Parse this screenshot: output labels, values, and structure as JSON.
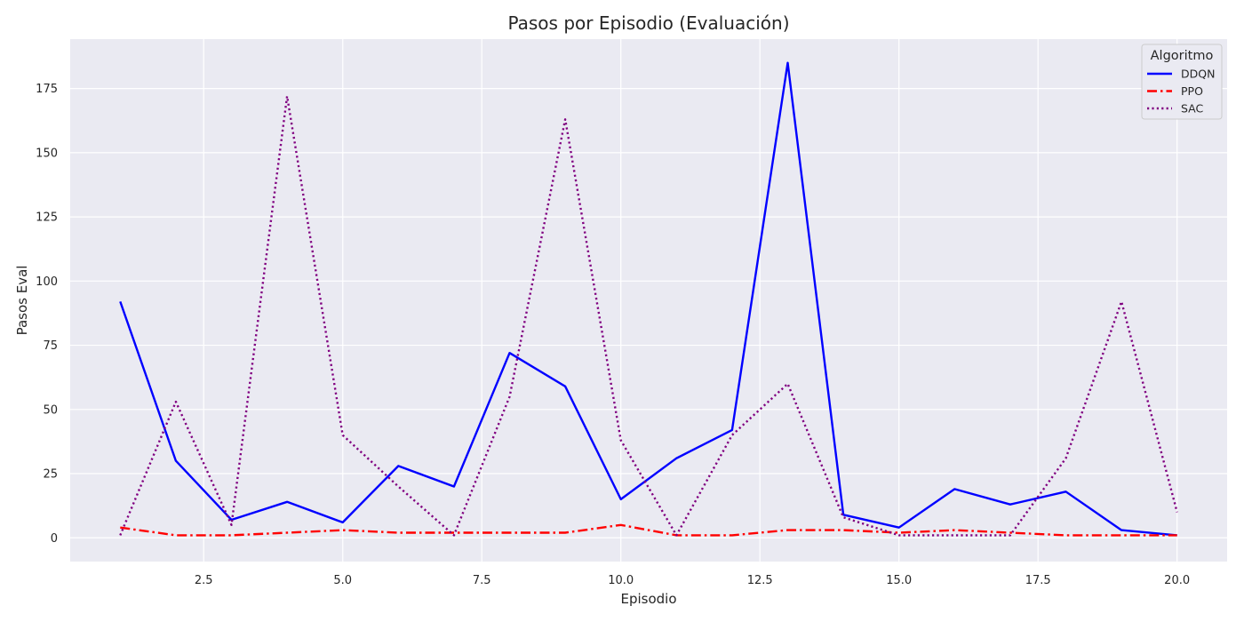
{
  "chart_data": {
    "type": "line",
    "title": "Pasos por Episodio (Evaluación)",
    "xlabel": "Episodio",
    "ylabel": "Pasos Eval",
    "xlim": [
      0.1,
      20.9
    ],
    "ylim": [
      -9.25,
      194.25
    ],
    "xticks": [
      2.5,
      5.0,
      7.5,
      10.0,
      12.5,
      15.0,
      17.5,
      20.0
    ],
    "xtick_labels": [
      "2.5",
      "5.0",
      "7.5",
      "10.0",
      "12.5",
      "15.0",
      "17.5",
      "20.0"
    ],
    "yticks": [
      0,
      25,
      50,
      75,
      100,
      125,
      150,
      175
    ],
    "ytick_labels": [
      "0",
      "25",
      "50",
      "75",
      "100",
      "125",
      "150",
      "175"
    ],
    "grid": true,
    "legend": {
      "title": "Algoritmo",
      "placement": "top-right"
    },
    "x": [
      1,
      2,
      3,
      4,
      5,
      6,
      7,
      8,
      9,
      10,
      11,
      12,
      13,
      14,
      15,
      16,
      17,
      18,
      19,
      20
    ],
    "series": [
      {
        "name": "DDQN",
        "color": "#0000ff",
        "style": "solid",
        "values": [
          92,
          30,
          7,
          14,
          6,
          28,
          20,
          72,
          59,
          15,
          31,
          42,
          185,
          9,
          4,
          19,
          13,
          18,
          3,
          1
        ]
      },
      {
        "name": "PPO",
        "color": "#ff0000",
        "style": "dashdot",
        "values": [
          4,
          1,
          1,
          2,
          3,
          2,
          2,
          2,
          2,
          5,
          1,
          1,
          3,
          3,
          2,
          3,
          2,
          1,
          1,
          1
        ]
      },
      {
        "name": "SAC",
        "color": "#800080",
        "style": "dotted",
        "values": [
          1,
          53,
          5,
          172,
          40,
          20,
          1,
          55,
          163,
          38,
          1,
          40,
          60,
          8,
          1,
          1,
          1,
          31,
          92,
          10
        ]
      }
    ]
  }
}
